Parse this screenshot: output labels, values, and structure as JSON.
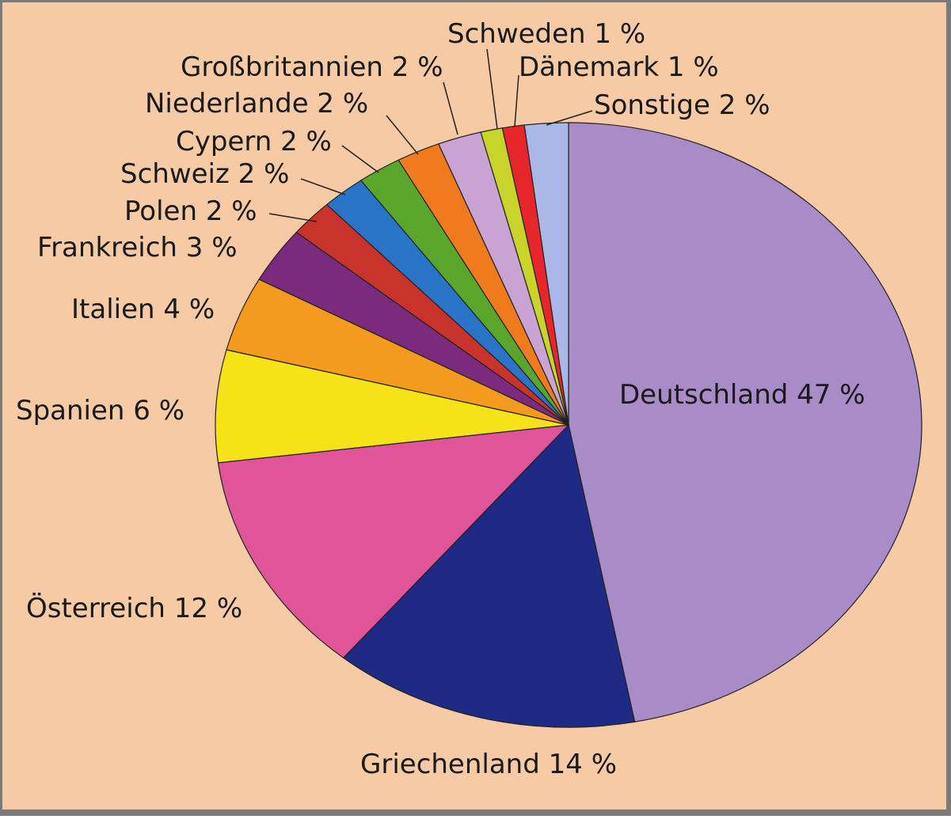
{
  "chart_data": {
    "type": "pie",
    "categories": [
      "Deutschland",
      "Griechenland",
      "Österreich",
      "Spanien",
      "Italien",
      "Frankreich",
      "Polen",
      "Schweiz",
      "Cypern",
      "Niederlande",
      "Großbritannien",
      "Schweden",
      "Dänemark",
      "Sonstige"
    ],
    "values": [
      47,
      14,
      12,
      6,
      4,
      3,
      2,
      2,
      2,
      2,
      2,
      1,
      1,
      2
    ],
    "value_labels": [
      "47 %",
      "14 %",
      "12 %",
      "6 %",
      "4 %",
      "3 %",
      "2 %",
      "2 %",
      "2 %",
      "2 %",
      "2 %",
      "1 %",
      "1 %",
      "2 %"
    ],
    "colors": [
      "#a98bc8",
      "#1f2a86",
      "#e0559a",
      "#f7e21a",
      "#f39a1f",
      "#7b2a7e",
      "#c8342c",
      "#2a74c8",
      "#5aa62a",
      "#f07a1e",
      "#c9a3d3",
      "#c8d42a",
      "#e6262a",
      "#a9b8e6"
    ]
  }
}
